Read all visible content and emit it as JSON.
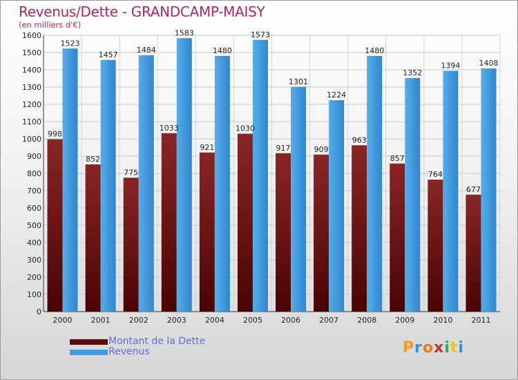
{
  "chart_data": {
    "type": "bar",
    "title": "Revenus/Dette - GRANDCAMP-MAISY",
    "subtitle": "(en milliers d'€)",
    "categories": [
      "2000",
      "2001",
      "2002",
      "2003",
      "2004",
      "2005",
      "2006",
      "2007",
      "2008",
      "2009",
      "2010",
      "2011"
    ],
    "series": [
      {
        "name": "Montant de la Dette",
        "color": "#7b1515",
        "values": [
          998,
          852,
          775,
          1033,
          921,
          1030,
          917,
          909,
          963,
          857,
          764,
          677
        ],
        "labels": [
          "998",
          "852",
          "775",
          "1033",
          "921",
          "1030",
          "917",
          "909",
          "963",
          "857",
          "764",
          "677"
        ]
      },
      {
        "name": "Revenus",
        "color": "#3d9be4",
        "values": [
          1523,
          1457,
          1484,
          1583,
          1480,
          1573,
          1301,
          1224,
          1480,
          1352,
          1394,
          1408
        ],
        "labels": [
          "1523",
          "1457",
          "1484",
          "1583",
          "1480",
          "1573",
          "1301",
          "1224",
          "1480",
          "1352",
          "1394",
          "1408"
        ]
      }
    ],
    "ylim": [
      0,
      1600
    ],
    "yticks": [
      0,
      100,
      200,
      300,
      400,
      500,
      600,
      700,
      800,
      900,
      1000,
      1100,
      1200,
      1300,
      1400,
      1500,
      1600
    ],
    "grid": true,
    "legend_position": "bottom-left"
  },
  "legend": {
    "debt_label": "Montant de la Dette",
    "revenue_label": "Revenus"
  },
  "logo": {
    "letters": [
      "P",
      "r",
      "o",
      "x",
      "i",
      "t",
      "i"
    ],
    "colors": [
      "#f39c12",
      "#3b8fd9",
      "#e67e22",
      "#c0392b",
      "#27ae60",
      "#f1c40f",
      "#3b8fd9"
    ]
  }
}
